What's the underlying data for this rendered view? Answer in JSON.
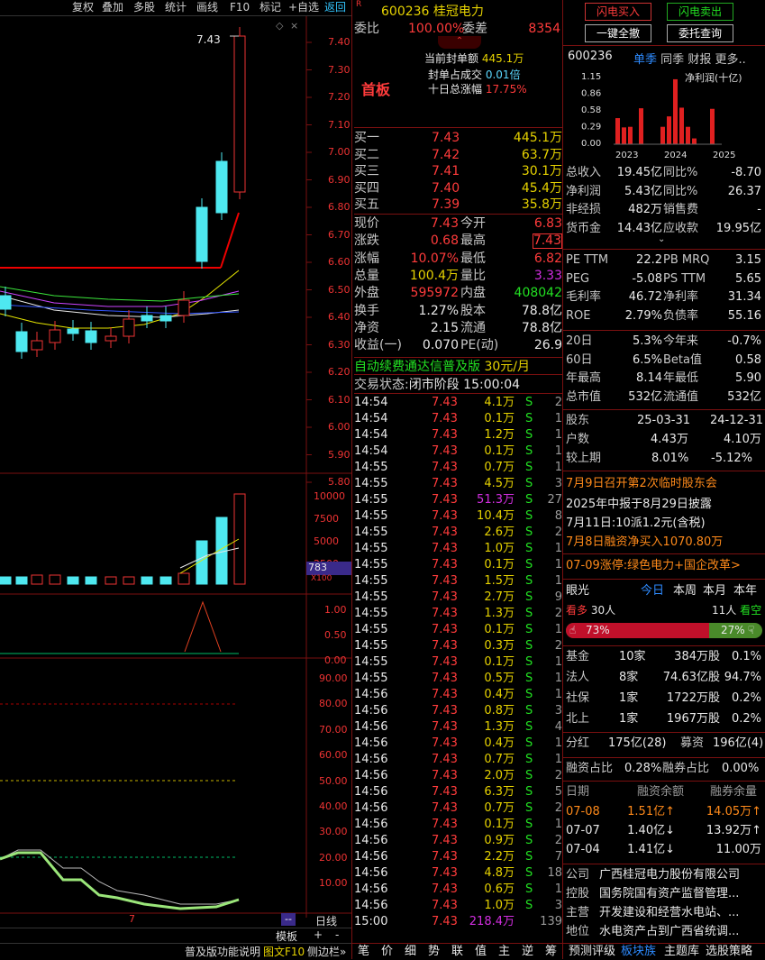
{
  "toolbar": {
    "items": [
      "复权",
      "叠加",
      "多股",
      "统计",
      "画线",
      "F10",
      "标记",
      "+自选",
      "返回"
    ]
  },
  "stock": {
    "code": "600236",
    "name": "桂冠电力",
    "flag": "R"
  },
  "weibi": {
    "label": "委比",
    "pct": "100.00%",
    "diff_label": "委差",
    "diff": "8354"
  },
  "seal": {
    "a_label": "当前封单额",
    "a_val": "445.1万",
    "b_label": "封单占成交",
    "b_val": "0.01倍",
    "c_label": "十日总涨幅",
    "c_val": "17.75%",
    "tag": "首板"
  },
  "bids": [
    {
      "label": "买一",
      "price": "7.43",
      "vol": "445.1万"
    },
    {
      "label": "买二",
      "price": "7.42",
      "vol": "63.7万"
    },
    {
      "label": "买三",
      "price": "7.41",
      "vol": "30.1万"
    },
    {
      "label": "买四",
      "price": "7.40",
      "vol": "45.4万"
    },
    {
      "label": "买五",
      "price": "7.39",
      "vol": "35.8万"
    }
  ],
  "quote": [
    {
      "l1": "现价",
      "v1": "7.43",
      "l2": "今开",
      "v2": "6.83"
    },
    {
      "l1": "涨跌",
      "v1": "0.68",
      "l2": "最高",
      "v2": "7.43"
    },
    {
      "l1": "涨幅",
      "v1": "10.07%",
      "l2": "最低",
      "v2": "6.82"
    },
    {
      "l1": "总量",
      "v1": "100.4万",
      "l2": "量比",
      "v2": "3.33"
    },
    {
      "l1": "外盘",
      "v1": "595972",
      "l2": "内盘",
      "v2": "408042"
    },
    {
      "l1": "换手",
      "v1": "1.27%",
      "l2": "股本",
      "v2": "78.8亿"
    },
    {
      "l1": "净资",
      "v1": "2.15",
      "l2": "流通",
      "v2": "78.8亿"
    },
    {
      "l1": "收益(一)",
      "v1": "0.070",
      "l2": "PE(动)",
      "v2": "26.9"
    }
  ],
  "promo": {
    "text": "自动续费通达信普及版",
    "price": "30元/月"
  },
  "trade_status": {
    "label": "交易状态:",
    "value": "闭市阶段 15:00:04"
  },
  "ticks": [
    {
      "t": "14:54",
      "p": "7.43",
      "v": "4.1万",
      "s": "S",
      "n": "2"
    },
    {
      "t": "14:54",
      "p": "7.43",
      "v": "0.1万",
      "s": "S",
      "n": "1"
    },
    {
      "t": "14:54",
      "p": "7.43",
      "v": "1.2万",
      "s": "S",
      "n": "1"
    },
    {
      "t": "14:54",
      "p": "7.43",
      "v": "0.1万",
      "s": "S",
      "n": "1"
    },
    {
      "t": "14:55",
      "p": "7.43",
      "v": "0.7万",
      "s": "S",
      "n": "1"
    },
    {
      "t": "14:55",
      "p": "7.43",
      "v": "4.5万",
      "s": "S",
      "n": "3"
    },
    {
      "t": "14:55",
      "p": "7.43",
      "v": "51.3万",
      "s": "S",
      "n": "27"
    },
    {
      "t": "14:55",
      "p": "7.43",
      "v": "10.4万",
      "s": "S",
      "n": "8"
    },
    {
      "t": "14:55",
      "p": "7.43",
      "v": "2.6万",
      "s": "S",
      "n": "2"
    },
    {
      "t": "14:55",
      "p": "7.43",
      "v": "1.0万",
      "s": "S",
      "n": "1"
    },
    {
      "t": "14:55",
      "p": "7.43",
      "v": "0.1万",
      "s": "S",
      "n": "1"
    },
    {
      "t": "14:55",
      "p": "7.43",
      "v": "1.5万",
      "s": "S",
      "n": "1"
    },
    {
      "t": "14:55",
      "p": "7.43",
      "v": "2.7万",
      "s": "S",
      "n": "9"
    },
    {
      "t": "14:55",
      "p": "7.43",
      "v": "1.3万",
      "s": "S",
      "n": "2"
    },
    {
      "t": "14:55",
      "p": "7.43",
      "v": "0.1万",
      "s": "S",
      "n": "1"
    },
    {
      "t": "14:55",
      "p": "7.43",
      "v": "0.3万",
      "s": "S",
      "n": "2"
    },
    {
      "t": "14:55",
      "p": "7.43",
      "v": "0.1万",
      "s": "S",
      "n": "1"
    },
    {
      "t": "14:55",
      "p": "7.43",
      "v": "0.5万",
      "s": "S",
      "n": "1"
    },
    {
      "t": "14:56",
      "p": "7.43",
      "v": "0.4万",
      "s": "S",
      "n": "1"
    },
    {
      "t": "14:56",
      "p": "7.43",
      "v": "0.8万",
      "s": "S",
      "n": "3"
    },
    {
      "t": "14:56",
      "p": "7.43",
      "v": "1.3万",
      "s": "S",
      "n": "4"
    },
    {
      "t": "14:56",
      "p": "7.43",
      "v": "0.4万",
      "s": "S",
      "n": "1"
    },
    {
      "t": "14:56",
      "p": "7.43",
      "v": "0.7万",
      "s": "S",
      "n": "1"
    },
    {
      "t": "14:56",
      "p": "7.43",
      "v": "2.0万",
      "s": "S",
      "n": "2"
    },
    {
      "t": "14:56",
      "p": "7.43",
      "v": "6.3万",
      "s": "S",
      "n": "5"
    },
    {
      "t": "14:56",
      "p": "7.43",
      "v": "0.7万",
      "s": "S",
      "n": "2"
    },
    {
      "t": "14:56",
      "p": "7.43",
      "v": "0.1万",
      "s": "S",
      "n": "1"
    },
    {
      "t": "14:56",
      "p": "7.43",
      "v": "0.9万",
      "s": "S",
      "n": "2"
    },
    {
      "t": "14:56",
      "p": "7.43",
      "v": "2.2万",
      "s": "S",
      "n": "7"
    },
    {
      "t": "14:56",
      "p": "7.43",
      "v": "4.8万",
      "s": "S",
      "n": "18"
    },
    {
      "t": "14:56",
      "p": "7.43",
      "v": "0.6万",
      "s": "S",
      "n": "1"
    },
    {
      "t": "14:56",
      "p": "7.43",
      "v": "1.0万",
      "s": "S",
      "n": "3"
    },
    {
      "t": "15:00",
      "p": "7.43",
      "v": "218.4万",
      "s": "",
      "n": "139"
    }
  ],
  "bottom_tabs": [
    "笔",
    "价",
    "细",
    "势",
    "联",
    "值",
    "主",
    "逆",
    "筹"
  ],
  "chart": {
    "price_axis": [
      "7.40",
      "7.30",
      "7.20",
      "7.10",
      "7.00",
      "6.90",
      "6.80",
      "6.70",
      "6.60",
      "6.50",
      "6.40",
      "6.30",
      "6.20",
      "6.10",
      "6.00",
      "5.90",
      "5.80"
    ],
    "last_price_label": "7.43",
    "vol_axis": [
      "10000",
      "7500",
      "5000",
      "2500",
      "783",
      "X100"
    ],
    "ind1_axis": [
      "1.00",
      "0.50",
      "0.00"
    ],
    "ind2_axis": [
      "90.00",
      "80.00",
      "70.00",
      "60.00",
      "50.00",
      "40.00",
      "30.00",
      "20.00",
      "10.00"
    ],
    "bottom_labels": {
      "mark": "7",
      "mode": "--",
      "template": "模板",
      "plus": "+",
      "minus": "-",
      "period": "日线"
    }
  },
  "footer_left": {
    "a": "普及版功能说明",
    "b": "图文F10",
    "c": "侧边栏»"
  },
  "right": {
    "buttons": {
      "b1": "闪电买入",
      "b2": "闪电卖出",
      "b3": "一键全撤",
      "b4": "委托查询"
    },
    "tabs": [
      "单季",
      "同季",
      "财报",
      "更多.."
    ],
    "code": "600236",
    "profit_chart": {
      "title": "净利润(十亿)",
      "y_ticks": [
        "1.15",
        "0.86",
        "0.58",
        "0.29",
        "0.00"
      ],
      "x_labels": [
        "2023",
        "2024",
        "2025"
      ]
    },
    "fin": [
      {
        "l1": "总收入",
        "v1": "19.45亿",
        "l2": "同比%",
        "v2": "-8.70"
      },
      {
        "l1": "净利润",
        "v1": "5.43亿",
        "l2": "同比%",
        "v2": "26.37"
      },
      {
        "l1": "非经损",
        "v1": "482万",
        "l2": "销售费",
        "v2": "-"
      },
      {
        "l1": "货币金",
        "v1": "14.43亿",
        "l2": "应收款",
        "v2": "19.95亿"
      }
    ],
    "val": [
      {
        "l1": "PE TTM",
        "v1": "22.2",
        "l2": "PB MRQ",
        "v2": "3.15"
      },
      {
        "l1": "PEG",
        "v1": "-5.08",
        "l2": "PS TTM",
        "v2": "5.65"
      },
      {
        "l1": "毛利率",
        "v1": "46.72",
        "l2": "净利率",
        "v2": "31.34"
      },
      {
        "l1": "ROE",
        "v1": "2.79%",
        "l2": "负债率",
        "v2": "55.16"
      }
    ],
    "perf": [
      {
        "l1": "20日",
        "v1": "5.3%",
        "l2": "今年来",
        "v2": "-0.7%"
      },
      {
        "l1": "60日",
        "v1": "6.5%",
        "l2": "Beta值",
        "v2": "0.58"
      },
      {
        "l1": "年最高",
        "v1": "8.14",
        "l2": "年最低",
        "v2": "5.90"
      },
      {
        "l1": "总市值",
        "v1": "532亿",
        "l2": "流通值",
        "v2": "532亿"
      }
    ],
    "holders": {
      "h0": "股东",
      "d1": "25-03-31",
      "d2": "24-12-31",
      "r1l": "户数",
      "r1a": "4.43万",
      "r1b": "4.10万",
      "r2l": "较上期",
      "r2a": "8.01%",
      "r2b": "-5.12%"
    },
    "news": [
      "7月9日召开第2次临时股东会",
      "2025年中报于8月29日披露",
      "7月11日:10派1.2元(含税)",
      "7月8日融资净买入1070.80万"
    ],
    "limit": "07-09涨停:绿色电力+国企改革>",
    "view": {
      "title": "眼光",
      "tabs": [
        "今日",
        "本周",
        "本月",
        "本年"
      ],
      "bull_label": "看多",
      "bull_n": "30人",
      "bear_n": "11人",
      "bear_label": "看空",
      "bull_pct": "73%",
      "bear_pct": "27%",
      "bull_frac": 0.73
    },
    "inst": [
      {
        "l": "基金",
        "n": "10家",
        "a": "384万股",
        "p": "0.1%"
      },
      {
        "l": "法人",
        "n": "8家",
        "a": "74.63亿股",
        "p": "94.7%"
      },
      {
        "l": "社保",
        "n": "1家",
        "a": "1722万股",
        "p": "0.2%"
      },
      {
        "l": "北上",
        "n": "1家",
        "a": "1967万股",
        "p": "0.2%"
      }
    ],
    "div": {
      "l1": "分红",
      "v1": "175亿(28)",
      "l2": "募资",
      "v2": "196亿(4)"
    },
    "margin_ratio": {
      "l1": "融资占比",
      "v1": "0.28%",
      "l2": "融券占比",
      "v2": "0.00%"
    },
    "margin": {
      "h1": "日期",
      "h2": "融资余额",
      "h3": "融券余量",
      "rows": [
        {
          "d": "07-08",
          "a": "1.51亿↑",
          "b": "14.05万↑"
        },
        {
          "d": "07-07",
          "a": "1.40亿↓",
          "b": "13.92万↑"
        },
        {
          "d": "07-04",
          "a": "1.41亿↓",
          "b": "11.00万"
        }
      ]
    },
    "company": [
      {
        "l": "公司",
        "v": "广西桂冠电力股份有限公司"
      },
      {
        "l": "控股",
        "v": "国务院国有资产监督管理..."
      },
      {
        "l": "主营",
        "v": "开发建设和经营水电站、..."
      },
      {
        "l": "地位",
        "v": "水电资产占到广西省统调..."
      }
    ],
    "footer": {
      "a": "预测评级",
      "b": "板块族",
      "c": "主题库",
      "d": "选股策略"
    }
  }
}
